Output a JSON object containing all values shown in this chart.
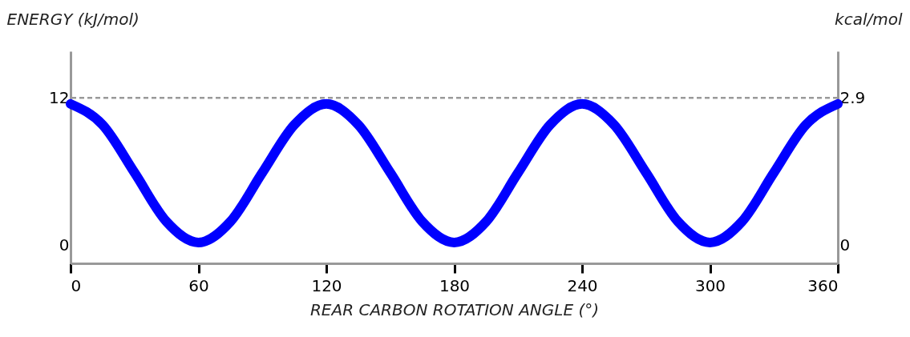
{
  "chart_data": {
    "type": "line",
    "xlabel": "REAR CARBON ROTATION ANGLE (°)",
    "ylabel": "ENERGY (kJ/mol)",
    "y2label": "kcal/mol",
    "x": [
      0,
      15,
      30,
      45,
      60,
      75,
      90,
      105,
      120,
      135,
      150,
      165,
      180,
      195,
      210,
      225,
      240,
      255,
      270,
      285,
      300,
      315,
      330,
      345,
      360
    ],
    "series": [
      {
        "color": "#0000ff",
        "values": [
          11.5,
          9.8,
          5.9,
          1.9,
          0.2,
          1.9,
          5.9,
          9.8,
          11.5,
          9.8,
          5.9,
          1.9,
          0.2,
          1.9,
          5.9,
          9.8,
          11.5,
          9.8,
          5.9,
          1.9,
          0.2,
          1.9,
          5.9,
          9.8,
          11.5
        ]
      }
    ],
    "xlim": [
      0,
      360
    ],
    "xticks": [
      0,
      60,
      120,
      180,
      240,
      300,
      360
    ],
    "ylim": [
      -1.5,
      15.8
    ],
    "yticks": [
      0,
      12
    ],
    "y2lim": [
      -0.36,
      3.82
    ],
    "y2ticks": [
      0,
      2.9
    ],
    "ref_lines": [
      {
        "axis": "y",
        "value": 12,
        "color": "#999999",
        "line_style": "dashed"
      }
    ],
    "grid": false,
    "marker": "none",
    "line_style": "solid"
  }
}
